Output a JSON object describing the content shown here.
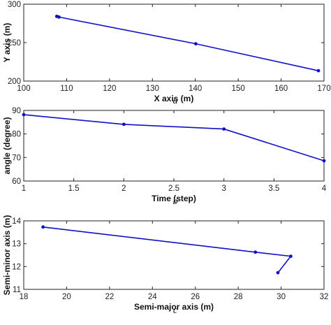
{
  "chart_data": [
    {
      "type": "line",
      "panel_label": "a",
      "x": [
        107.7,
        108.2,
        140.1,
        168.7
      ],
      "y": [
        284.2,
        283.3,
        248.5,
        213.5
      ],
      "xlabel": "X axis (m)",
      "ylabel": "Y axis (m)",
      "xlim": [
        100,
        170
      ],
      "ylim": [
        200,
        300
      ],
      "xticks": [
        100,
        110,
        120,
        130,
        140,
        150,
        160,
        170
      ],
      "yticks": [
        200,
        250,
        300
      ],
      "grid": false,
      "color": "#1010c8"
    },
    {
      "type": "line",
      "panel_label": "b",
      "x": [
        1,
        2,
        3,
        4
      ],
      "y": [
        88.2,
        84.1,
        82.1,
        68.6
      ],
      "xlabel": "Time (step)",
      "ylabel": "angle (degree)",
      "xlim": [
        1,
        4
      ],
      "ylim": [
        60,
        90
      ],
      "xticks": [
        1,
        1.5,
        2,
        2.5,
        3,
        3.5,
        4
      ],
      "yticks": [
        60,
        70,
        80,
        90
      ],
      "grid": false,
      "color": "#1010c8"
    },
    {
      "type": "line",
      "panel_label": "c",
      "x": [
        18.9,
        28.8,
        30.45,
        29.85
      ],
      "y": [
        13.73,
        12.63,
        12.45,
        11.73
      ],
      "xlabel": "Semi-major axis (m)",
      "ylabel": "Semi-minor axis (m)",
      "xlim": [
        18,
        32
      ],
      "ylim": [
        11,
        14
      ],
      "xticks": [
        18,
        20,
        22,
        24,
        26,
        28,
        30,
        32
      ],
      "yticks": [
        11,
        12,
        13,
        14
      ],
      "grid": false,
      "color": "#1010c8"
    }
  ]
}
